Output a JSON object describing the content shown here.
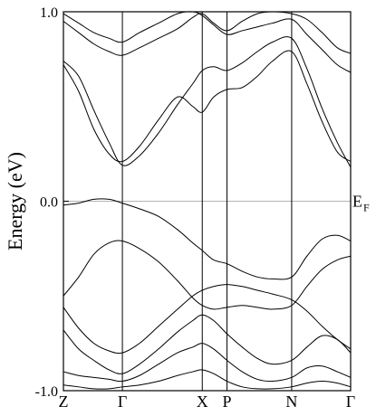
{
  "chart_data": {
    "type": "line",
    "title": "",
    "ylabel": "Energy (eV)",
    "ylim": [
      -1.0,
      1.0
    ],
    "yticks": [
      {
        "value": 1.0,
        "label": "1.0"
      },
      {
        "value": 0.0,
        "label": "0.0"
      },
      {
        "value": -1.0,
        "label": "-1.0"
      }
    ],
    "x_symmetry_points": [
      {
        "x": 0.0,
        "label": "Z"
      },
      {
        "x": 0.31,
        "label": "Γ"
      },
      {
        "x": 0.73,
        "label": "X"
      },
      {
        "x": 0.86,
        "label": "P"
      },
      {
        "x": 1.2,
        "label": "N"
      },
      {
        "x": 1.51,
        "label": "Γ"
      }
    ],
    "fermi_level": {
      "value": 0.0,
      "label": "E",
      "subscript": "F"
    },
    "series": [
      {
        "x": [
          0.0,
          0.08,
          0.16,
          0.24,
          0.31,
          0.4,
          0.5,
          0.6,
          0.68,
          0.73,
          0.79,
          0.86,
          0.94,
          1.02,
          1.1,
          1.2,
          1.28,
          1.36,
          1.44,
          1.51
        ],
        "values": [
          0.72,
          0.58,
          0.38,
          0.25,
          0.21,
          0.29,
          0.43,
          0.55,
          0.5,
          0.47,
          0.55,
          0.59,
          0.6,
          0.66,
          0.74,
          0.79,
          0.62,
          0.42,
          0.26,
          0.21
        ]
      },
      {
        "x": [
          0.0,
          0.08,
          0.16,
          0.24,
          0.31,
          0.4,
          0.5,
          0.6,
          0.68,
          0.73,
          0.79,
          0.86,
          0.94,
          1.02,
          1.1,
          1.2,
          1.28,
          1.36,
          1.44,
          1.51
        ],
        "values": [
          0.74,
          0.66,
          0.48,
          0.31,
          0.19,
          0.24,
          0.36,
          0.51,
          0.62,
          0.69,
          0.71,
          0.69,
          0.73,
          0.79,
          0.84,
          0.86,
          0.7,
          0.49,
          0.31,
          0.18
        ]
      },
      {
        "x": [
          0.0,
          0.08,
          0.16,
          0.24,
          0.31,
          0.4,
          0.5,
          0.6,
          0.68,
          0.73,
          0.79,
          0.86,
          0.94,
          1.02,
          1.1,
          1.2,
          1.28,
          1.36,
          1.44,
          1.51
        ],
        "values": [
          0.95,
          0.89,
          0.83,
          0.79,
          0.77,
          0.81,
          0.86,
          0.91,
          0.97,
          0.99,
          0.94,
          0.9,
          0.95,
          0.99,
          1.0,
          0.99,
          0.96,
          0.89,
          0.81,
          0.78
        ]
      },
      {
        "x": [
          0.0,
          0.08,
          0.16,
          0.24,
          0.31,
          0.4,
          0.5,
          0.6,
          0.68,
          0.73,
          0.79,
          0.86,
          0.94,
          1.02,
          1.1,
          1.2,
          1.28,
          1.36,
          1.44,
          1.51
        ],
        "values": [
          0.99,
          0.94,
          0.89,
          0.86,
          0.84,
          0.89,
          0.94,
          0.99,
          1.0,
          0.98,
          0.93,
          0.88,
          0.9,
          0.92,
          0.94,
          0.96,
          0.88,
          0.8,
          0.72,
          0.68
        ]
      },
      {
        "x": [
          0.0,
          0.08,
          0.16,
          0.24,
          0.31,
          0.4,
          0.5,
          0.6,
          0.68,
          0.73,
          0.79,
          0.86,
          0.94,
          1.02,
          1.1,
          1.2,
          1.28,
          1.36,
          1.44,
          1.51
        ],
        "values": [
          -0.02,
          -0.01,
          0.01,
          0.01,
          -0.01,
          -0.04,
          -0.08,
          -0.15,
          -0.22,
          -0.26,
          -0.31,
          -0.33,
          -0.37,
          -0.4,
          -0.41,
          -0.4,
          -0.29,
          -0.2,
          -0.18,
          -0.21
        ]
      },
      {
        "x": [
          0.0,
          0.08,
          0.16,
          0.24,
          0.31,
          0.4,
          0.5,
          0.6,
          0.68,
          0.73,
          0.79,
          0.86,
          0.94,
          1.02,
          1.1,
          1.2,
          1.28,
          1.36,
          1.44,
          1.51
        ],
        "values": [
          -0.5,
          -0.4,
          -0.28,
          -0.22,
          -0.21,
          -0.25,
          -0.32,
          -0.42,
          -0.51,
          -0.55,
          -0.57,
          -0.56,
          -0.55,
          -0.56,
          -0.57,
          -0.55,
          -0.45,
          -0.36,
          -0.31,
          -0.29
        ]
      },
      {
        "x": [
          0.0,
          0.08,
          0.16,
          0.24,
          0.31,
          0.4,
          0.5,
          0.6,
          0.68,
          0.73,
          0.79,
          0.86,
          0.94,
          1.02,
          1.1,
          1.2,
          1.28,
          1.36,
          1.44,
          1.51
        ],
        "values": [
          -0.56,
          -0.67,
          -0.75,
          -0.79,
          -0.8,
          -0.75,
          -0.66,
          -0.57,
          -0.5,
          -0.47,
          -0.45,
          -0.44,
          -0.45,
          -0.47,
          -0.49,
          -0.52,
          -0.58,
          -0.66,
          -0.73,
          -0.78
        ]
      },
      {
        "x": [
          0.0,
          0.08,
          0.16,
          0.24,
          0.31,
          0.4,
          0.5,
          0.6,
          0.68,
          0.73,
          0.79,
          0.86,
          0.94,
          1.02,
          1.1,
          1.2,
          1.28,
          1.36,
          1.44,
          1.51
        ],
        "values": [
          -0.68,
          -0.78,
          -0.84,
          -0.89,
          -0.91,
          -0.86,
          -0.78,
          -0.69,
          -0.63,
          -0.6,
          -0.63,
          -0.7,
          -0.77,
          -0.83,
          -0.86,
          -0.84,
          -0.77,
          -0.71,
          -0.73,
          -0.8
        ]
      },
      {
        "x": [
          0.0,
          0.08,
          0.16,
          0.24,
          0.31,
          0.4,
          0.5,
          0.6,
          0.68,
          0.73,
          0.79,
          0.86,
          0.94,
          1.02,
          1.1,
          1.2,
          1.28,
          1.36,
          1.44,
          1.51
        ],
        "values": [
          -0.9,
          -0.92,
          -0.93,
          -0.94,
          -0.95,
          -0.92,
          -0.86,
          -0.8,
          -0.77,
          -0.75,
          -0.78,
          -0.84,
          -0.9,
          -0.94,
          -0.95,
          -0.93,
          -0.88,
          -0.87,
          -0.9,
          -0.93
        ]
      },
      {
        "x": [
          0.0,
          0.08,
          0.16,
          0.24,
          0.31,
          0.4,
          0.5,
          0.6,
          0.68,
          0.73,
          0.79,
          0.86,
          0.94,
          1.02,
          1.1,
          1.2,
          1.28,
          1.36,
          1.44,
          1.51
        ],
        "values": [
          -0.97,
          -0.98,
          -0.99,
          -0.99,
          -0.98,
          -0.97,
          -0.95,
          -0.92,
          -0.9,
          -0.89,
          -0.91,
          -0.95,
          -0.98,
          -0.99,
          -0.99,
          -0.98,
          -0.96,
          -0.95,
          -0.96,
          -0.98
        ]
      }
    ]
  }
}
